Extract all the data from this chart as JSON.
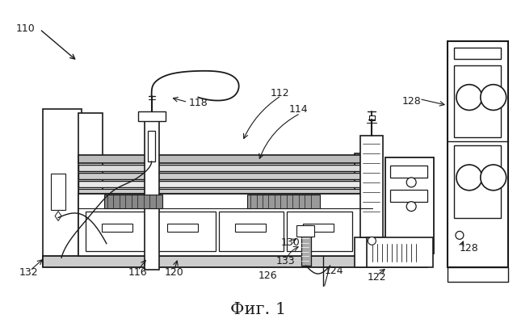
{
  "bg_color": "#ffffff",
  "line_color": "#1a1a1a",
  "title": "Фиг. 1",
  "title_fontsize": 15,
  "lw_main": 1.2,
  "lw_thin": 0.7,
  "lw_thick": 1.8
}
